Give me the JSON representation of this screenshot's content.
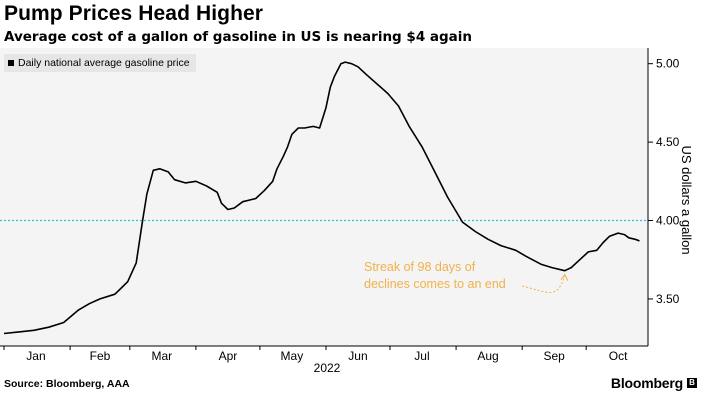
{
  "header": {
    "title": "Pump Prices Head Higher",
    "subtitle": "Average cost of a gallon of gasoline in US is nearing $4 again"
  },
  "legend": {
    "label": "Daily national average gasoline price"
  },
  "footer": {
    "source": "Source: Bloomberg, AAA",
    "brand": "Bloomberg"
  },
  "colors": {
    "line": "#000000",
    "reference": "#2ec4d6",
    "annotation": "#f0b24a",
    "plot_bg": "#f4f4f4"
  },
  "chart_data": {
    "type": "line",
    "title": "Pump Prices Head Higher",
    "subtitle": "Average cost of a gallon of gasoline in US is nearing $4 again",
    "xlabel": "2022",
    "ylabel": "US dollars a gallon",
    "ylim": [
      3.2,
      5.1
    ],
    "yticks": [
      3.5,
      4.0,
      4.5,
      5.0
    ],
    "ytick_labels": [
      "3.50",
      "4.00",
      "4.50",
      "5.00"
    ],
    "xlim": [
      0,
      302
    ],
    "xticks": [
      15,
      45,
      74,
      105,
      135,
      166,
      196,
      227,
      258,
      288
    ],
    "xtick_labels": [
      "Jan",
      "Feb",
      "Mar",
      "Apr",
      "May",
      "Jun",
      "Jul",
      "Aug",
      "Sep",
      "Oct"
    ],
    "reference_line": 4.0,
    "grid": false,
    "legend_position": "top-left",
    "series": [
      {
        "name": "Daily national average gasoline price",
        "x": [
          0,
          7,
          14,
          21,
          28,
          35,
          40,
          45,
          52,
          55,
          58,
          62,
          65,
          67,
          70,
          73,
          77,
          80,
          85,
          90,
          95,
          100,
          102,
          105,
          108,
          112,
          115,
          118,
          122,
          126,
          128,
          131,
          133,
          135,
          138,
          141,
          145,
          148,
          151,
          153,
          155,
          158,
          160,
          163,
          166,
          170,
          175,
          180,
          185,
          190,
          196,
          202,
          208,
          215,
          221,
          227,
          233,
          240,
          245,
          252,
          257,
          263,
          266,
          270,
          274,
          278,
          281,
          284,
          288,
          291,
          293,
          296,
          298
        ],
        "y": [
          3.28,
          3.29,
          3.3,
          3.32,
          3.35,
          3.43,
          3.47,
          3.5,
          3.53,
          3.57,
          3.61,
          3.73,
          4.0,
          4.17,
          4.32,
          4.33,
          4.31,
          4.26,
          4.24,
          4.25,
          4.22,
          4.18,
          4.11,
          4.07,
          4.08,
          4.12,
          4.13,
          4.14,
          4.19,
          4.25,
          4.33,
          4.41,
          4.47,
          4.55,
          4.59,
          4.59,
          4.6,
          4.59,
          4.72,
          4.85,
          4.92,
          5.0,
          5.01,
          5.0,
          4.98,
          4.93,
          4.87,
          4.81,
          4.73,
          4.6,
          4.47,
          4.31,
          4.15,
          3.99,
          3.93,
          3.88,
          3.84,
          3.81,
          3.77,
          3.72,
          3.7,
          3.68,
          3.7,
          3.75,
          3.8,
          3.81,
          3.86,
          3.9,
          3.92,
          3.91,
          3.89,
          3.88,
          3.87
        ]
      }
    ],
    "annotations": [
      {
        "text_lines": [
          "Streak of 98 days of",
          "declines comes to an end"
        ],
        "points_to_x": 263,
        "points_to_y": 3.68
      }
    ]
  }
}
